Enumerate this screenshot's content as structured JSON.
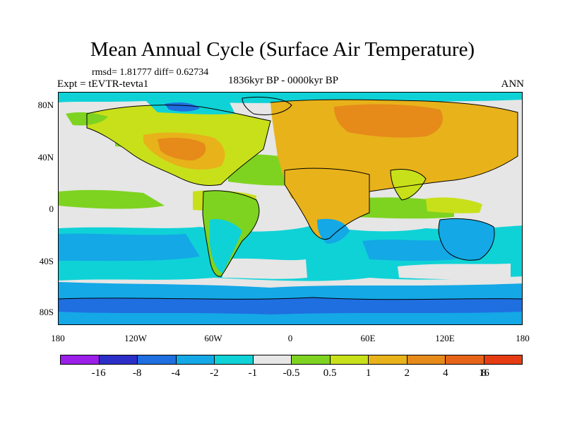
{
  "title": "Mean Annual Cycle (Surface Air Temperature)",
  "stats": "rmsd= 1.81777 diff= 0.62734",
  "experiment": "Expt = tEVTR-tevta1",
  "period": "1836kyr BP - 0000kyr BP",
  "season": "ANN",
  "lat_labels": [
    "80N",
    "40N",
    "0",
    "40S",
    "80S"
  ],
  "lon_labels": [
    "180",
    "120W",
    "60W",
    "0",
    "60E",
    "120E",
    "180"
  ],
  "colorbar": {
    "colors": [
      "#9b1fe8",
      "#2c2ec8",
      "#1f6fe0",
      "#14a8e6",
      "#0fd2d6",
      "#e6e6e6",
      "#7ed321",
      "#c8e01a",
      "#e8b21a",
      "#e68a1a",
      "#e6641a",
      "#e63c14"
    ],
    "labels": [
      "-16",
      "-8",
      "-4",
      "-2",
      "-1",
      "-0.5",
      "0.5",
      "1",
      "2",
      "4",
      "8",
      "16"
    ]
  },
  "palette": {
    "neutral": "#e6e6e6",
    "cyan": "#0fd2d6",
    "light_blue": "#14a8e6",
    "blue": "#1f6fe0",
    "green": "#7ed321",
    "yellow_green": "#c8e01a",
    "orange": "#e8b21a",
    "dark_orange": "#e68a1a"
  }
}
